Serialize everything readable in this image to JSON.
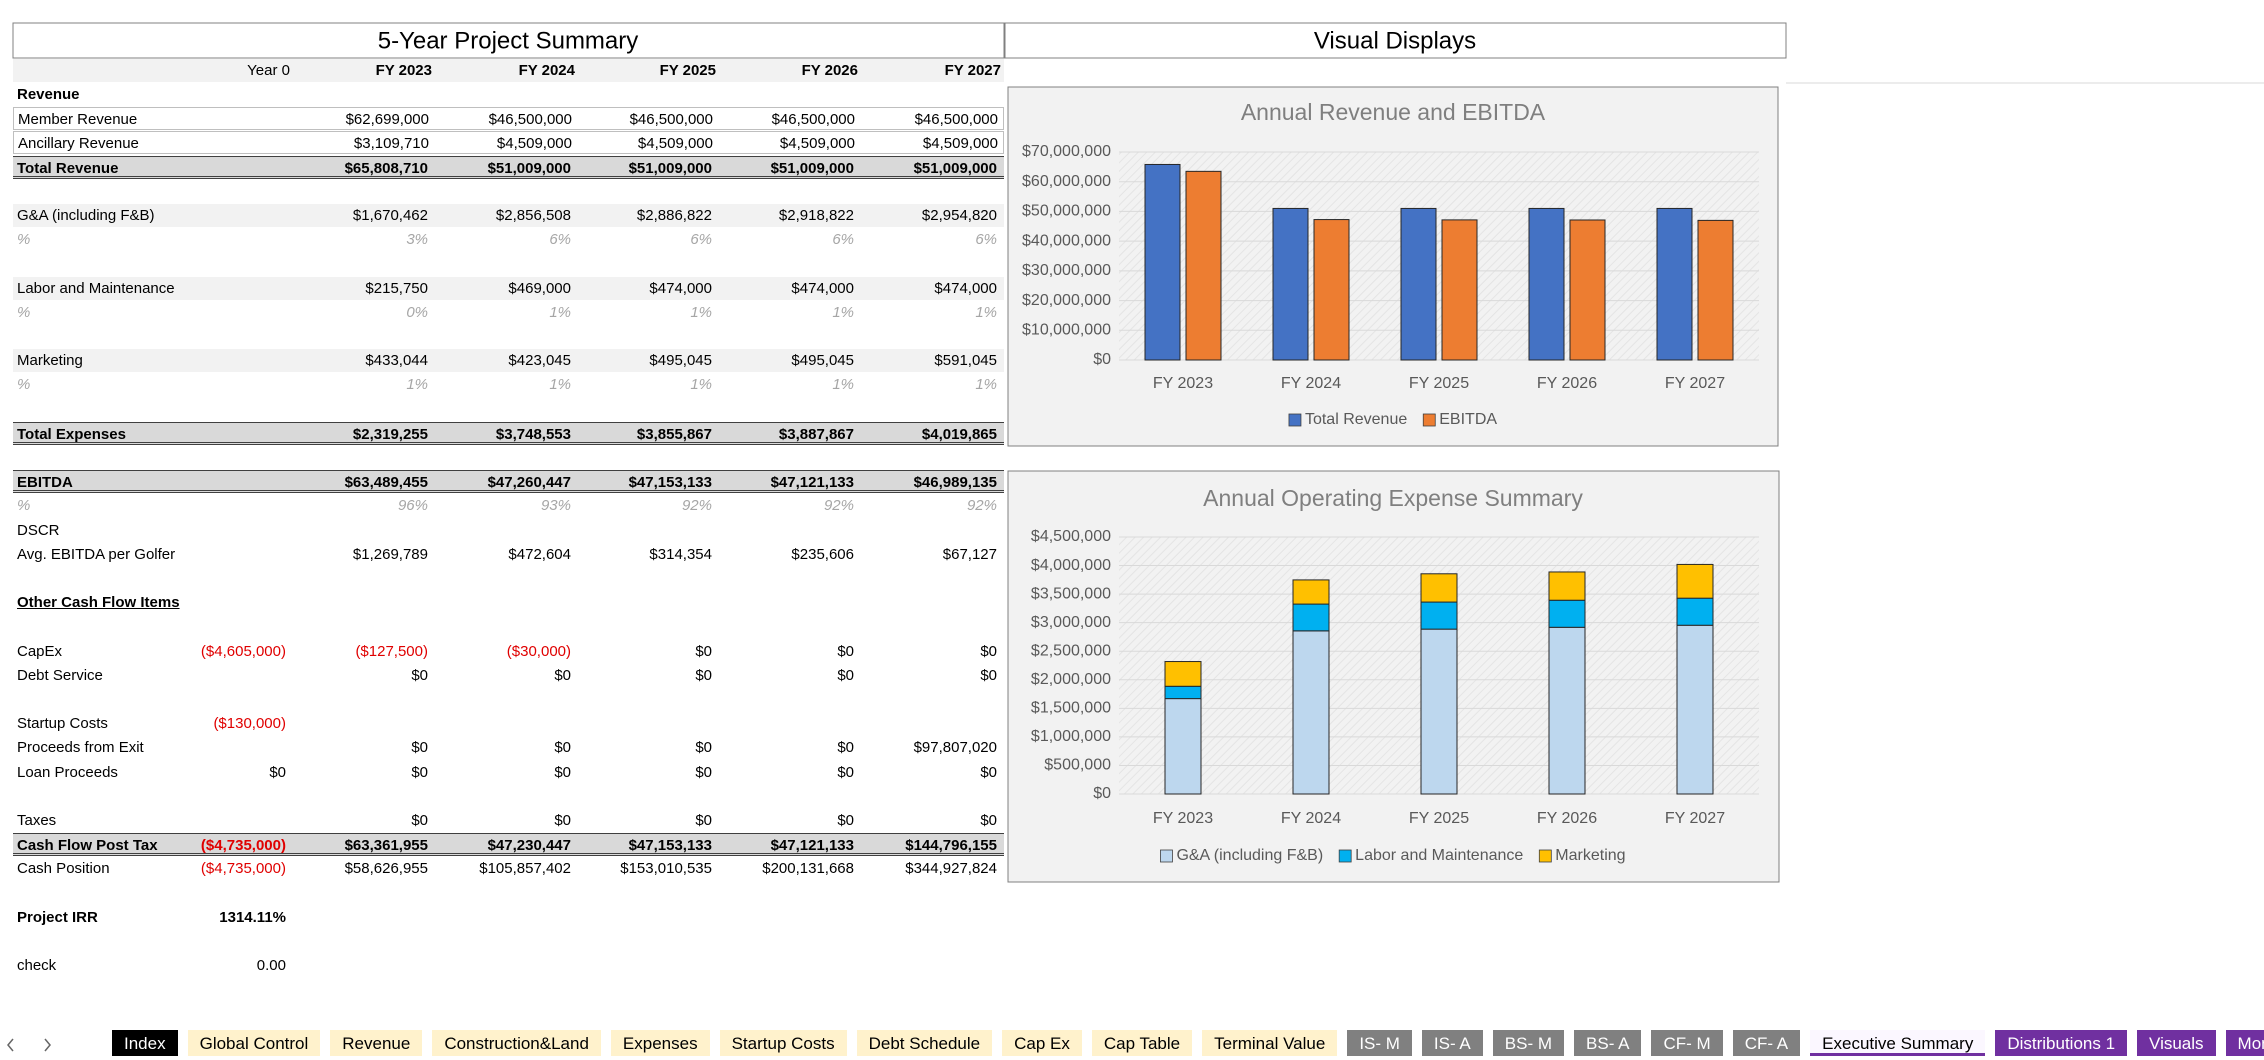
{
  "summary": {
    "title": "5-Year Project Summary",
    "visual_title": "Visual Displays",
    "columns": [
      "Year 0",
      "FY 2023",
      "FY 2024",
      "FY 2025",
      "FY 2026",
      "FY 2027"
    ],
    "rows": [
      {
        "label": "Revenue",
        "style": "section",
        "cells": []
      },
      {
        "label": "Member Revenue",
        "style": "boxed",
        "cells": [
          null,
          "$62,699,000",
          "$46,500,000",
          "$46,500,000",
          "$46,500,000",
          "$46,500,000"
        ]
      },
      {
        "label": "Ancillary Revenue",
        "style": "boxed",
        "cells": [
          null,
          "$3,109,710",
          "$4,509,000",
          "$4,509,000",
          "$4,509,000",
          "$4,509,000"
        ]
      },
      {
        "label": "Total Revenue",
        "style": "total",
        "cells": [
          null,
          "$65,808,710",
          "$51,009,000",
          "$51,009,000",
          "$51,009,000",
          "$51,009,000"
        ]
      },
      null,
      {
        "label": "G&A (including F&B)",
        "style": "shaded",
        "cells": [
          null,
          "$1,670,462",
          "$2,856,508",
          "$2,886,822",
          "$2,918,822",
          "$2,954,820"
        ]
      },
      {
        "label": "%",
        "style": "pct",
        "cells": [
          null,
          "3%",
          "6%",
          "6%",
          "6%",
          "6%"
        ]
      },
      null,
      {
        "label": "Labor and Maintenance",
        "style": "shaded",
        "cells": [
          null,
          "$215,750",
          "$469,000",
          "$474,000",
          "$474,000",
          "$474,000"
        ]
      },
      {
        "label": "%",
        "style": "pct",
        "cells": [
          null,
          "0%",
          "1%",
          "1%",
          "1%",
          "1%"
        ]
      },
      null,
      {
        "label": "Marketing",
        "style": "shaded",
        "cells": [
          null,
          "$433,044",
          "$423,045",
          "$495,045",
          "$495,045",
          "$591,045"
        ]
      },
      {
        "label": "%",
        "style": "pct",
        "cells": [
          null,
          "1%",
          "1%",
          "1%",
          "1%",
          "1%"
        ]
      },
      null,
      {
        "label": "Total Expenses",
        "style": "total",
        "cells": [
          null,
          "$2,319,255",
          "$3,748,553",
          "$3,855,867",
          "$3,887,867",
          "$4,019,865"
        ]
      },
      null,
      {
        "label": "EBITDA",
        "style": "total",
        "cells": [
          null,
          "$63,489,455",
          "$47,260,447",
          "$47,153,133",
          "$47,121,133",
          "$46,989,135"
        ]
      },
      {
        "label": "%",
        "style": "pct",
        "cells": [
          null,
          "96%",
          "93%",
          "92%",
          "92%",
          "92%"
        ]
      },
      {
        "label": "DSCR",
        "style": "plain",
        "cells": []
      },
      {
        "label": "Avg. EBITDA per Golfer",
        "style": "plain",
        "cells": [
          null,
          "$1,269,789",
          "$472,604",
          "$314,354",
          "$235,606",
          "$67,127"
        ]
      },
      null,
      {
        "label": "Other Cash Flow Items",
        "style": "link",
        "cells": []
      },
      null,
      {
        "label": "CapEx",
        "style": "plain",
        "cells": [
          "($4,605,000)",
          "($127,500)",
          "($30,000)",
          "$0",
          "$0",
          "$0"
        ]
      },
      {
        "label": "Debt Service",
        "style": "plain",
        "cells": [
          null,
          "$0",
          "$0",
          "$0",
          "$0",
          "$0"
        ]
      },
      null,
      {
        "label": "Startup Costs",
        "style": "plain",
        "cells": [
          "($130,000)"
        ]
      },
      {
        "label": "Proceeds from Exit",
        "style": "plain",
        "cells": [
          null,
          "$0",
          "$0",
          "$0",
          "$0",
          "$97,807,020"
        ]
      },
      {
        "label": "Loan Proceeds",
        "style": "plain",
        "cells": [
          "$0",
          "$0",
          "$0",
          "$0",
          "$0",
          "$0"
        ]
      },
      null,
      {
        "label": "Taxes",
        "style": "plain",
        "cells": [
          null,
          "$0",
          "$0",
          "$0",
          "$0",
          "$0"
        ]
      },
      {
        "label": "Cash Flow Post Tax",
        "style": "total",
        "cells": [
          "($4,735,000)",
          "$63,361,955",
          "$47,230,447",
          "$47,153,133",
          "$47,121,133",
          "$144,796,155"
        ]
      },
      {
        "label": "Cash Position",
        "style": "plain",
        "cells": [
          "($4,735,000)",
          "$58,626,955",
          "$105,857,402",
          "$153,010,535",
          "$200,131,668",
          "$344,927,824"
        ]
      },
      null,
      {
        "label": "Project IRR",
        "style": "bold",
        "cells": [
          "1314.11%"
        ]
      },
      null,
      {
        "label": "check",
        "style": "plain",
        "cells": [
          "0.00"
        ]
      }
    ]
  },
  "chart_data": [
    {
      "type": "bar",
      "title": "Annual Revenue and EBITDA",
      "categories": [
        "FY 2023",
        "FY 2024",
        "FY 2025",
        "FY 2026",
        "FY 2027"
      ],
      "series": [
        {
          "name": "Total Revenue",
          "color": "#4472c4",
          "values": [
            65808710,
            51009000,
            51009000,
            51009000,
            51009000
          ]
        },
        {
          "name": "EBITDA",
          "color": "#ed7d31",
          "values": [
            63489455,
            47260447,
            47153133,
            47121133,
            46989135
          ]
        }
      ],
      "ylim": [
        0,
        70000000
      ],
      "yticks": [
        {
          "value": 0,
          "label": "$0"
        },
        {
          "value": 10000000,
          "label": "$10,000,000"
        },
        {
          "value": 20000000,
          "label": "$20,000,000"
        },
        {
          "value": 30000000,
          "label": "$30,000,000"
        },
        {
          "value": 40000000,
          "label": "$40,000,000"
        },
        {
          "value": 50000000,
          "label": "$50,000,000"
        },
        {
          "value": 60000000,
          "label": "$60,000,000"
        },
        {
          "value": 70000000,
          "label": "$70,000,000"
        }
      ],
      "grid": true,
      "legend": "bottom"
    },
    {
      "type": "stacked_bar",
      "title": "Annual Operating Expense Summary",
      "categories": [
        "FY 2023",
        "FY 2024",
        "FY 2025",
        "FY 2026",
        "FY 2027"
      ],
      "series": [
        {
          "name": "G&A (including F&B)",
          "color": "#bdd7ee",
          "values": [
            1670462,
            2856508,
            2886822,
            2918822,
            2954820
          ]
        },
        {
          "name": "Labor and Maintenance",
          "color": "#00b0f0",
          "values": [
            215750,
            469000,
            474000,
            474000,
            474000
          ]
        },
        {
          "name": "Marketing",
          "color": "#ffc000",
          "values": [
            433044,
            423045,
            495045,
            495045,
            591045
          ]
        }
      ],
      "ylim": [
        0,
        4500000
      ],
      "yticks": [
        {
          "value": 0,
          "label": "$0"
        },
        {
          "value": 500000,
          "label": "$500,000"
        },
        {
          "value": 1000000,
          "label": "$1,000,000"
        },
        {
          "value": 1500000,
          "label": "$1,500,000"
        },
        {
          "value": 2000000,
          "label": "$2,000,000"
        },
        {
          "value": 2500000,
          "label": "$2,500,000"
        },
        {
          "value": 3000000,
          "label": "$3,000,000"
        },
        {
          "value": 3500000,
          "label": "$3,500,000"
        },
        {
          "value": 4000000,
          "label": "$4,000,000"
        },
        {
          "value": 4500000,
          "label": "$4,500,000"
        }
      ],
      "grid": true,
      "legend": "bottom"
    }
  ],
  "tabs": [
    {
      "label": "Index",
      "color": "#000000"
    },
    {
      "label": "Global Control",
      "color": "#fff2cc"
    },
    {
      "label": "Revenue",
      "color": "#fff2cc"
    },
    {
      "label": "Construction&Land",
      "color": "#fff2cc"
    },
    {
      "label": "Expenses",
      "color": "#fff2cc"
    },
    {
      "label": "Startup Costs",
      "color": "#fff2cc"
    },
    {
      "label": "Debt Schedule",
      "color": "#fff2cc"
    },
    {
      "label": "Cap Ex",
      "color": "#fff2cc"
    },
    {
      "label": "Cap Table",
      "color": "#fff2cc"
    },
    {
      "label": "Terminal Value",
      "color": "#fff2cc"
    },
    {
      "label": "IS- M",
      "color": "#808080"
    },
    {
      "label": "IS- A",
      "color": "#808080"
    },
    {
      "label": "BS- M",
      "color": "#808080"
    },
    {
      "label": "BS- A",
      "color": "#808080"
    },
    {
      "label": "CF- M",
      "color": "#808080"
    },
    {
      "label": "CF- A",
      "color": "#808080"
    },
    {
      "label": "Executive Summary",
      "color": "#ffffff",
      "active": true
    },
    {
      "label": "Distributions 1",
      "color": "#7030a0"
    },
    {
      "label": "Visuals",
      "color": "#7030a0"
    },
    {
      "label": "Mon",
      "color": "#7030a0"
    }
  ]
}
